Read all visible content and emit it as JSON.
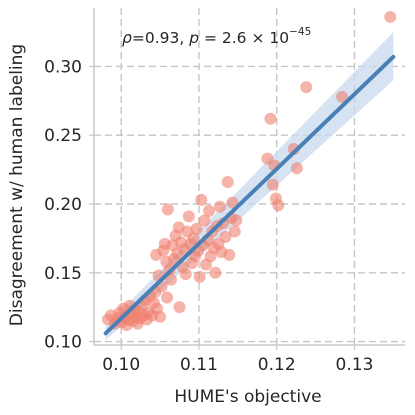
{
  "chart_data": {
    "type": "scatter",
    "xlabel": "HUME's objective",
    "ylabel": "Disagreement w/ human labeling",
    "xlim": [
      0.0965,
      0.1365
    ],
    "ylim": [
      0.0975,
      0.3425
    ],
    "xticks": [
      0.1,
      0.11,
      0.12,
      0.13
    ],
    "xtick_labels": [
      "0.10",
      "0.11",
      "0.12",
      "0.13"
    ],
    "yticks": [
      0.1,
      0.15,
      0.2,
      0.25,
      0.3
    ],
    "ytick_labels": [
      "0.10",
      "0.15",
      "0.20",
      "0.25",
      "0.30"
    ],
    "grid": true,
    "annotation": {
      "rho_symbol": "ρ",
      "rho_value": "=0.93, ",
      "p_symbol": "p",
      "p_value": " = 2.6 × 10",
      "p_exponent": "−45"
    },
    "colors": {
      "points": "#f08070",
      "fit_line": "#4a80b5",
      "confidence_band": "#c7d9ee"
    },
    "regression": {
      "x": [
        0.098,
        0.135
      ],
      "y": [
        0.106,
        0.307
      ],
      "ci_lower": [
        0.101,
        0.29
      ],
      "ci_upper": [
        0.111,
        0.325
      ]
    },
    "points": [
      [
        0.0983,
        0.116
      ],
      [
        0.0987,
        0.119
      ],
      [
        0.0992,
        0.113
      ],
      [
        0.0995,
        0.117
      ],
      [
        0.0998,
        0.121
      ],
      [
        0.1001,
        0.114
      ],
      [
        0.1003,
        0.124
      ],
      [
        0.1005,
        0.118
      ],
      [
        0.1007,
        0.112
      ],
      [
        0.1009,
        0.116
      ],
      [
        0.1011,
        0.126
      ],
      [
        0.1013,
        0.12
      ],
      [
        0.1015,
        0.115
      ],
      [
        0.1017,
        0.123
      ],
      [
        0.1019,
        0.118
      ],
      [
        0.1021,
        0.113
      ],
      [
        0.1023,
        0.122
      ],
      [
        0.1025,
        0.117
      ],
      [
        0.1027,
        0.126
      ],
      [
        0.1029,
        0.119
      ],
      [
        0.1031,
        0.13
      ],
      [
        0.1033,
        0.116
      ],
      [
        0.1035,
        0.121
      ],
      [
        0.1037,
        0.133
      ],
      [
        0.104,
        0.119
      ],
      [
        0.1042,
        0.128
      ],
      [
        0.1044,
        0.136
      ],
      [
        0.1046,
        0.124
      ],
      [
        0.1048,
        0.148
      ],
      [
        0.105,
        0.118
      ],
      [
        0.1045,
        0.163
      ],
      [
        0.1052,
        0.14
      ],
      [
        0.1054,
        0.166
      ],
      [
        0.1056,
        0.171
      ],
      [
        0.1058,
        0.158
      ],
      [
        0.1059,
        0.132
      ],
      [
        0.106,
        0.196
      ],
      [
        0.1062,
        0.152
      ],
      [
        0.1064,
        0.145
      ],
      [
        0.1066,
        0.17
      ],
      [
        0.1068,
        0.16
      ],
      [
        0.107,
        0.177
      ],
      [
        0.1072,
        0.164
      ],
      [
        0.1074,
        0.183
      ],
      [
        0.1075,
        0.125
      ],
      [
        0.1077,
        0.172
      ],
      [
        0.1079,
        0.154
      ],
      [
        0.1081,
        0.167
      ],
      [
        0.1083,
        0.149
      ],
      [
        0.1085,
        0.18
      ],
      [
        0.1087,
        0.191
      ],
      [
        0.1089,
        0.171
      ],
      [
        0.1091,
        0.157
      ],
      [
        0.1093,
        0.175
      ],
      [
        0.1095,
        0.162
      ],
      [
        0.1097,
        0.182
      ],
      [
        0.1099,
        0.166
      ],
      [
        0.1101,
        0.147
      ],
      [
        0.1103,
        0.203
      ],
      [
        0.1105,
        0.17
      ],
      [
        0.1107,
        0.188
      ],
      [
        0.1109,
        0.156
      ],
      [
        0.1111,
        0.174
      ],
      [
        0.1113,
        0.195
      ],
      [
        0.1115,
        0.162
      ],
      [
        0.1117,
        0.18
      ],
      [
        0.1119,
        0.168
      ],
      [
        0.1121,
        0.15
      ],
      [
        0.1123,
        0.184
      ],
      [
        0.1125,
        0.171
      ],
      [
        0.1127,
        0.198
      ],
      [
        0.1129,
        0.165
      ],
      [
        0.1131,
        0.186
      ],
      [
        0.1134,
        0.176
      ],
      [
        0.1137,
        0.216
      ],
      [
        0.1139,
        0.163
      ],
      [
        0.1141,
        0.19
      ],
      [
        0.1143,
        0.201
      ],
      [
        0.1146,
        0.18
      ],
      [
        0.1148,
        0.188
      ],
      [
        0.1188,
        0.233
      ],
      [
        0.1192,
        0.262
      ],
      [
        0.1195,
        0.214
      ],
      [
        0.1197,
        0.228
      ],
      [
        0.1199,
        0.204
      ],
      [
        0.1202,
        0.199
      ],
      [
        0.1222,
        0.24
      ],
      [
        0.1226,
        0.226
      ],
      [
        0.1238,
        0.285
      ],
      [
        0.1284,
        0.278
      ],
      [
        0.1346,
        0.336
      ]
    ]
  }
}
